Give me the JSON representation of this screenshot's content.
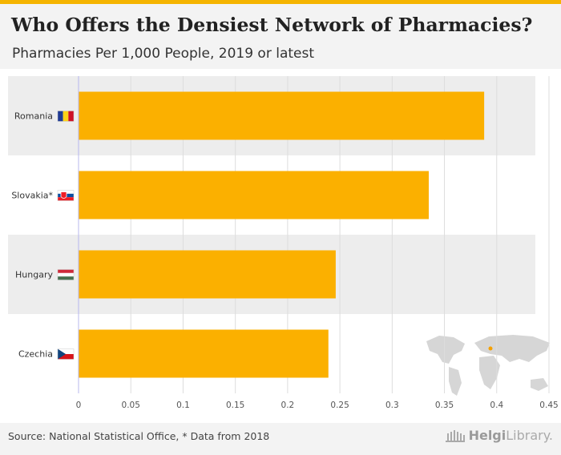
{
  "header": {
    "title": "Who Offers the Densiest Network of Pharmacies?",
    "subtitle": "Pharmacies Per 1,000 People, 2019 or latest"
  },
  "footer": {
    "source": "Source: National Statistical Office, * Data from 2018",
    "brand_part1": "Helgi",
    "brand_part2": "Library."
  },
  "colors": {
    "accent": "#f5b400",
    "bar": "#fbb000",
    "band": "#ededed",
    "grid": "#dddddd",
    "axis": "#b8b8ee",
    "map": "#d6d6d6"
  },
  "chart_data": {
    "type": "bar",
    "orientation": "horizontal",
    "title": "Who Offers the Densiest Network of Pharmacies?",
    "subtitle": "Pharmacies Per 1,000 People, 2019 or latest",
    "categories": [
      "Romania",
      "Slovakia*",
      "Hungary",
      "Czechia"
    ],
    "flag_icons": [
      "romania-flag-icon",
      "slovakia-flag-icon",
      "hungary-flag-icon",
      "czechia-flag-icon"
    ],
    "values": [
      0.388,
      0.335,
      0.246,
      0.239
    ],
    "xlim": [
      0,
      0.45
    ],
    "xticks": [
      0,
      0.05,
      0.1,
      0.15,
      0.2,
      0.25,
      0.3,
      0.35,
      0.4,
      0.45
    ],
    "xtick_labels": [
      "0",
      "0.05",
      "0.1",
      "0.15",
      "0.2",
      "0.25",
      "0.3",
      "0.35",
      "0.4",
      "0.45"
    ],
    "xlabel": "",
    "ylabel": "",
    "grid": true,
    "legend": "none"
  }
}
